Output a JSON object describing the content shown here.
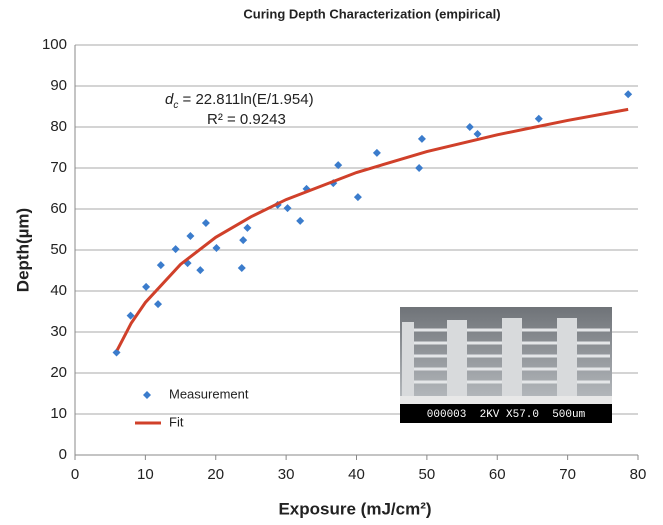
{
  "chart_data": {
    "type": "scatter",
    "title": "Curing Depth Characterization (empirical)",
    "x_label": "Exposure (mJ/cm²)",
    "y_label": "Depth(µm)",
    "xlim": [
      0,
      80
    ],
    "xticks": [
      0,
      10,
      20,
      30,
      40,
      50,
      60,
      70,
      80
    ],
    "ylim": [
      0,
      100
    ],
    "yticks": [
      0,
      10,
      20,
      30,
      40,
      50,
      60,
      70,
      80,
      90,
      100
    ],
    "grid": true,
    "legend": "lower left",
    "annotation": {
      "symbol": "d",
      "subscript": "c",
      "text": " = 22.811ln(E/1.954)",
      "r_squared": "R² = 0.9243"
    },
    "inset_caption": "000003  2KV X57.0  500um",
    "series": [
      {
        "name": "Measurement",
        "type": "scatter",
        "color": "#3b7ccc",
        "x": [
          5.9,
          7.9,
          10.1,
          11.8,
          12.2,
          14.3,
          16.0,
          16.4,
          17.8,
          18.6,
          20.1,
          23.7,
          23.9,
          24.5,
          28.8,
          30.2,
          32.0,
          32.9,
          36.7,
          37.4,
          40.2,
          42.9,
          48.9,
          49.3,
          56.1,
          57.2,
          65.9,
          78.6
        ],
        "values": [
          25,
          34,
          41,
          36.8,
          46.3,
          50.2,
          46.8,
          53.4,
          45.1,
          56.6,
          50.5,
          45.6,
          52.4,
          55.4,
          61,
          60.2,
          57.1,
          64.9,
          66.3,
          70.7,
          62.9,
          73.7,
          70,
          77.1,
          80,
          78.3,
          82,
          88
        ]
      },
      {
        "name": "Fit",
        "type": "line",
        "color": "#d0402a",
        "x": [
          6,
          8,
          10,
          15,
          20,
          25,
          30,
          40,
          50,
          60,
          70,
          78.6
        ],
        "values": [
          25.6,
          32.2,
          37.2,
          46.5,
          53.1,
          58.1,
          62.3,
          68.9,
          74.0,
          78.1,
          81.6,
          84.3
        ]
      }
    ]
  }
}
